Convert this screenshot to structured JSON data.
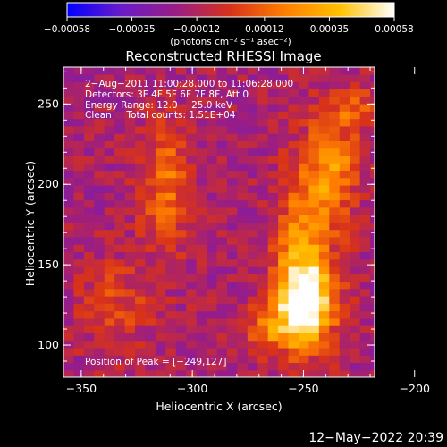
{
  "chart_data": {
    "type": "heatmap",
    "title": "Reconstructed RHESSI Image",
    "xlabel": "Heliocentric X (arcsec)",
    "ylabel": "Heliocentric Y (arcsec)",
    "xlim": [
      -358,
      -218
    ],
    "ylim": [
      80,
      273
    ],
    "xticks": [
      -350,
      -300,
      -250,
      -200
    ],
    "yticks": [
      100,
      150,
      200,
      250
    ],
    "xtick_labels": [
      "−350",
      "−300",
      "−250",
      "−200"
    ],
    "ytick_labels": [
      "100",
      "150",
      "200",
      "250"
    ],
    "colorbar": {
      "ticks": [
        -0.00058,
        -0.00035,
        -0.00012,
        0.00012,
        0.00035,
        0.00058
      ],
      "tick_labels": [
        "−0.00058",
        "−0.00035",
        "−0.00012",
        "0.00012",
        "0.00035",
        "0.00058"
      ],
      "units": "(photons cm⁻² s⁻¹ asec⁻²)",
      "range": [
        -0.00058,
        0.00058
      ],
      "colors": [
        "#0000ff",
        "#6a1cc8",
        "#9a1d84",
        "#d8321a",
        "#ff7f00",
        "#ffc000",
        "#ffffff"
      ]
    },
    "annotations": [
      "2−Aug−2011 11:00:28.000 to 11:06:28.000",
      "Detectors: 3F 4F 5F 6F 7F 8F, Att 0",
      "Energy Range: 12.0 − 25.0 keV",
      "Clean     Total counts: 1.51E+04"
    ],
    "peak": {
      "label": "Position of Peak = [−249,127]",
      "x": -249,
      "y": 127
    },
    "sources": [
      {
        "x": -250,
        "y": 150,
        "sx": 9,
        "sy": 38,
        "amp": 0.00045
      },
      {
        "x": -237,
        "y": 210,
        "sx": 8,
        "sy": 22,
        "amp": 0.00038
      },
      {
        "x": -249,
        "y": 127,
        "sx": 9,
        "sy": 15,
        "amp": 0.00058
      },
      {
        "x": -312,
        "y": 200,
        "sx": 8,
        "sy": 28,
        "amp": 0.0003
      },
      {
        "x": -335,
        "y": 125,
        "sx": 12,
        "sy": 20,
        "amp": 0.00018
      },
      {
        "x": -228,
        "y": 248,
        "sx": 10,
        "sy": 10,
        "amp": 0.0002
      },
      {
        "x": -265,
        "y": 110,
        "sx": 10,
        "sy": 10,
        "amp": 0.00025
      }
    ],
    "background_level": -0.00015
  },
  "footer": {
    "timestamp": "12−May−2022 20:39"
  }
}
